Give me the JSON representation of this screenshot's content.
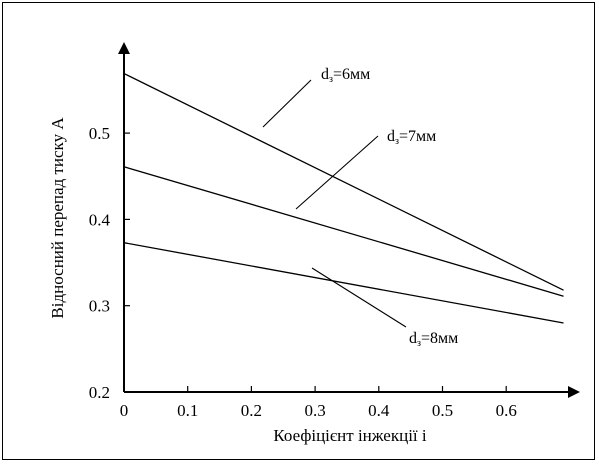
{
  "chart_data": {
    "type": "line",
    "xlabel": "Коефіцієнт інжекції і",
    "ylabel": "Відносний перепад тиску А",
    "xlim": [
      0,
      0.7
    ],
    "ylim": [
      0.2,
      0.6
    ],
    "x_ticks": [
      "0",
      "0.1",
      "0.2",
      "0.3",
      "0.4",
      "0.5",
      "0.6"
    ],
    "y_ticks": [
      "0.2",
      "0.3",
      "0.4",
      "0.5"
    ],
    "grid": false,
    "series": [
      {
        "name_main": "d",
        "name_sub": "з",
        "name_tail": "=6мм",
        "x": [
          0,
          0.69
        ],
        "y": [
          0.569,
          0.318
        ]
      },
      {
        "name_main": "d",
        "name_sub": "з",
        "name_tail": "=7мм",
        "x": [
          0,
          0.69
        ],
        "y": [
          0.461,
          0.311
        ]
      },
      {
        "name_main": "d",
        "name_sub": "з",
        "name_tail": "=8мм",
        "x": [
          0,
          0.69
        ],
        "y": [
          0.373,
          0.28
        ]
      }
    ]
  }
}
